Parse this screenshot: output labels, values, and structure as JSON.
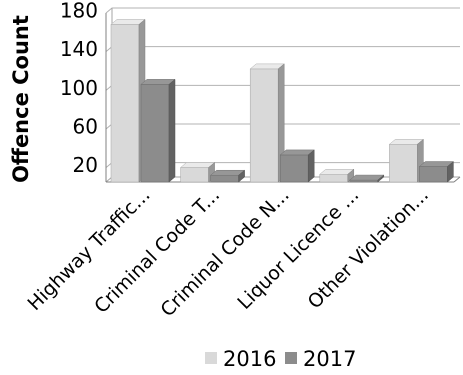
{
  "chart_data": {
    "type": "bar",
    "categories": [
      "Highway Traffic...",
      "Criminal Code T...",
      "Criminal Code N...",
      "Liquor Licence ...",
      "Other Violation..."
    ],
    "series": [
      {
        "name": "2016",
        "values": [
          163,
          15,
          117,
          8,
          39
        ]
      },
      {
        "name": "2017",
        "values": [
          101,
          7,
          28,
          2,
          16
        ]
      }
    ],
    "ylabel": "Offence Count",
    "yticks": [
      20,
      60,
      100,
      140,
      180
    ],
    "ylim": [
      0,
      180
    ],
    "grid": true,
    "three_d": true,
    "legend_position": "bottom",
    "colors": {
      "2016": "#d9d9d9",
      "2017": "#8c8c8c"
    }
  }
}
